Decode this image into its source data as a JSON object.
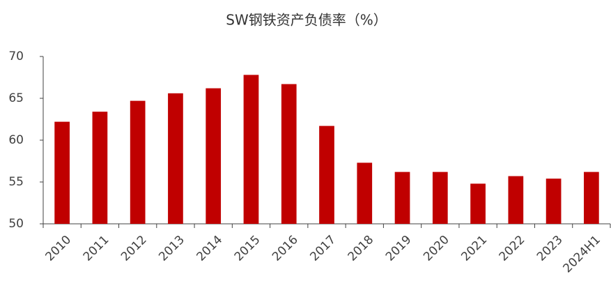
{
  "chart_data": {
    "type": "bar",
    "title": "SW钢铁资产负债率（%）",
    "categories": [
      "2010",
      "2011",
      "2012",
      "2013",
      "2014",
      "2015",
      "2016",
      "2017",
      "2018",
      "2019",
      "2020",
      "2021",
      "2022",
      "2023",
      "2024H1"
    ],
    "values": [
      62.2,
      63.4,
      64.7,
      65.6,
      66.2,
      67.8,
      66.7,
      61.7,
      57.3,
      56.2,
      56.2,
      54.8,
      55.7,
      55.4,
      56.2
    ],
    "color": "#c00000",
    "ylim": [
      50,
      70
    ],
    "yticks": [
      50,
      55,
      60,
      65,
      70
    ],
    "grid": false
  }
}
